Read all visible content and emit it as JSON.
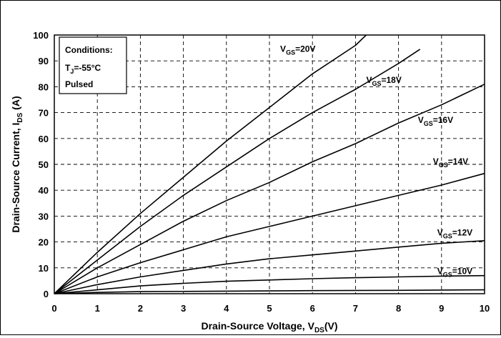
{
  "chart_data": {
    "type": "line",
    "xlabel": {
      "main": "Drain-Source Voltage, V",
      "sub": "DS",
      "tail": "(V)"
    },
    "ylabel": {
      "main": "Drain-Source Current, I",
      "sub": "DS",
      "tail": "  (A)"
    },
    "xlim": [
      0,
      10
    ],
    "ylim": [
      0,
      100
    ],
    "x_ticks": [
      "0",
      "1",
      "2",
      "3",
      "4",
      "5",
      "6",
      "7",
      "8",
      "9",
      "10"
    ],
    "y_ticks": [
      "0",
      "10",
      "20",
      "30",
      "40",
      "50",
      "60",
      "70",
      "80",
      "90",
      "100"
    ],
    "grid": true,
    "grid_style": "dashed",
    "conditions": {
      "title": "Conditions:",
      "temp_main": "T",
      "temp_sub": "J",
      "temp_value": "=-55°C",
      "mode": "Pulsed"
    },
    "series": [
      {
        "label_main": "V",
        "label_sub": "GS",
        "label_value": "=20V",
        "x": [
          0,
          1,
          2,
          3,
          4,
          5,
          6,
          7,
          7.25
        ],
        "y": [
          0,
          16,
          31,
          45,
          59,
          72,
          85,
          96,
          100
        ]
      },
      {
        "label_main": "V",
        "label_sub": "GS",
        "label_value": "=18V",
        "x": [
          0,
          1,
          2,
          3,
          4,
          5,
          6,
          7,
          8,
          8.5
        ],
        "y": [
          0,
          13,
          26,
          38,
          49,
          60,
          70,
          79,
          89,
          94.5
        ]
      },
      {
        "label_main": "V",
        "label_sub": "GS",
        "label_value": "=16V",
        "x": [
          0,
          1,
          2,
          3,
          4,
          5,
          6,
          7,
          8,
          9,
          10
        ],
        "y": [
          0,
          10,
          19,
          28,
          36,
          43,
          51,
          58,
          66,
          73,
          81
        ]
      },
      {
        "label_main": "V",
        "label_sub": "GS",
        "label_value": "=14V",
        "x": [
          0,
          1,
          2,
          3,
          4,
          5,
          6,
          7,
          8,
          9,
          10
        ],
        "y": [
          0,
          6.5,
          12,
          17,
          22,
          26,
          30,
          34,
          38,
          42,
          46.5
        ]
      },
      {
        "label_main": "V",
        "label_sub": "GS",
        "label_value": "=12V",
        "x": [
          0,
          1,
          2,
          3,
          4,
          5,
          6,
          7,
          8,
          9,
          10
        ],
        "y": [
          0,
          3.5,
          6.5,
          9,
          11.5,
          13.5,
          15,
          16.5,
          18,
          19.5,
          20.5
        ]
      },
      {
        "label_main": "V",
        "label_sub": "GS",
        "label_value": "=10V",
        "x": [
          0,
          1,
          2,
          3,
          4,
          5,
          6,
          7,
          8,
          9,
          10
        ],
        "y": [
          0,
          1.5,
          3,
          4,
          4.8,
          5.3,
          5.8,
          6.2,
          6.5,
          6.8,
          7
        ]
      },
      {
        "label_main": "",
        "label_sub": "",
        "label_value": "",
        "x": [
          0,
          1,
          2,
          4,
          6,
          8,
          10
        ],
        "y": [
          0,
          0.5,
          0.8,
          1.0,
          1.2,
          1.3,
          1.5
        ]
      }
    ]
  }
}
